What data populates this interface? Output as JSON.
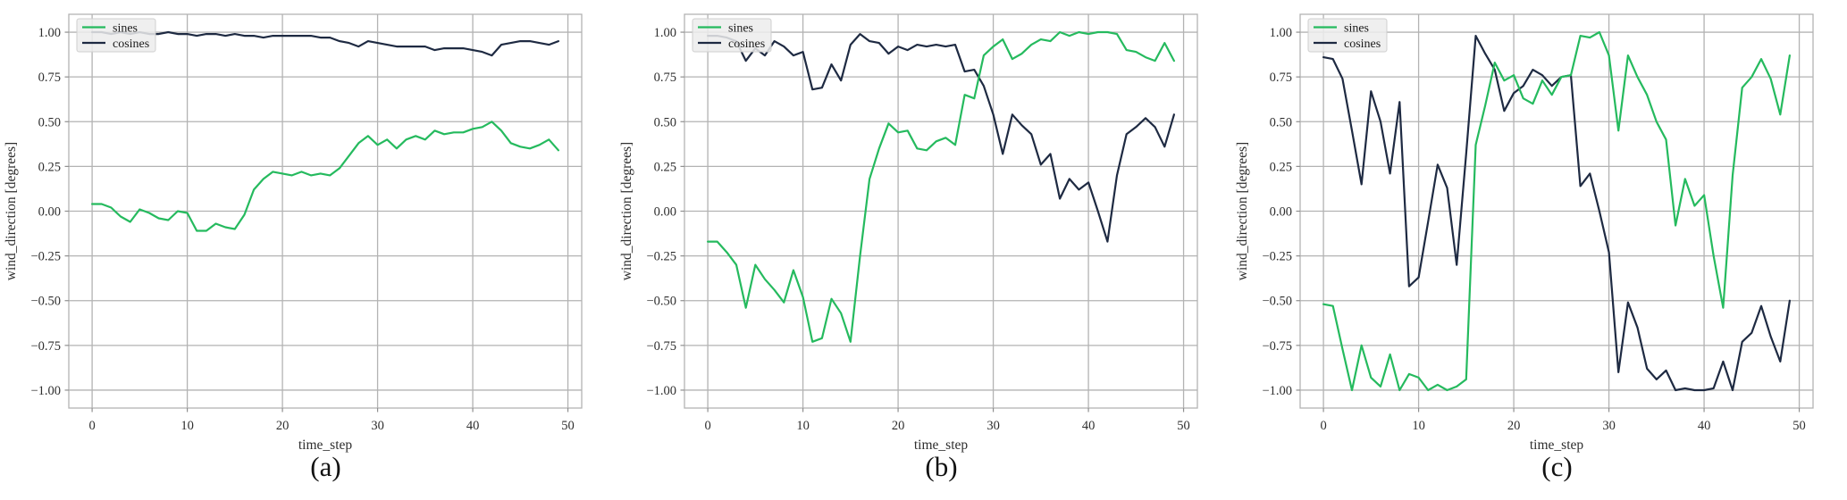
{
  "page": {
    "background": "#ffffff"
  },
  "styles": {
    "grid_color": "#b3b3b3",
    "frame_color": "#b3b3b3",
    "tick_mark_color": "#8f8f8f",
    "text_color": "#2e2e2e",
    "caption_color": "#111111",
    "legend_bg": "#ececec",
    "legend_border": "#cfcfcf",
    "sines_color": "#25ba5e",
    "cosines_color": "#1e2a42"
  },
  "chart_data": [
    {
      "type": "line",
      "caption": "(a)",
      "title": "",
      "xlabel": "time_step",
      "ylabel": "wind_direction [degrees]",
      "legend": {
        "position": "upper left",
        "entries": [
          "sines",
          "cosines"
        ]
      },
      "x_start": 0,
      "x_step": 1,
      "n_points": 50,
      "xlim": [
        -2.45,
        51.45
      ],
      "ylim": [
        -1.1,
        1.1
      ],
      "x_ticks": [
        0,
        10,
        20,
        30,
        40,
        50
      ],
      "y_ticks": [
        1.0,
        0.75,
        0.5,
        0.25,
        0.0,
        -0.25,
        -0.5,
        -0.75,
        -1.0
      ],
      "y_tick_labels": [
        "1.00",
        "0.75",
        "0.50",
        "0.25",
        "0.00",
        "−0.25",
        "−0.50",
        "−0.75",
        "−1.00"
      ],
      "grid": true,
      "series": [
        {
          "name": "sines",
          "color": "#25ba5e",
          "values": [
            0.04,
            0.04,
            0.02,
            -0.03,
            -0.06,
            0.01,
            -0.01,
            -0.04,
            -0.05,
            0.0,
            -0.01,
            -0.11,
            -0.11,
            -0.07,
            -0.09,
            -0.1,
            -0.02,
            0.12,
            0.18,
            0.22,
            0.21,
            0.2,
            0.22,
            0.2,
            0.21,
            0.2,
            0.24,
            0.31,
            0.38,
            0.42,
            0.37,
            0.4,
            0.35,
            0.4,
            0.42,
            0.4,
            0.45,
            0.43,
            0.44,
            0.44,
            0.46,
            0.47,
            0.5,
            0.45,
            0.38,
            0.36,
            0.35,
            0.37,
            0.4,
            0.34
          ]
        },
        {
          "name": "cosines",
          "color": "#1e2a42",
          "values": [
            1.0,
            1.0,
            0.99,
            1.0,
            0.99,
            1.0,
            0.99,
            0.99,
            1.0,
            0.99,
            0.99,
            0.98,
            0.99,
            0.99,
            0.98,
            0.99,
            0.98,
            0.98,
            0.97,
            0.98,
            0.98,
            0.98,
            0.98,
            0.98,
            0.97,
            0.97,
            0.95,
            0.94,
            0.92,
            0.95,
            0.94,
            0.93,
            0.92,
            0.92,
            0.92,
            0.92,
            0.9,
            0.91,
            0.91,
            0.91,
            0.9,
            0.89,
            0.87,
            0.93,
            0.94,
            0.95,
            0.95,
            0.94,
            0.93,
            0.95
          ]
        }
      ]
    },
    {
      "type": "line",
      "caption": "(b)",
      "title": "",
      "xlabel": "time_step",
      "ylabel": "wind_direction [degrees]",
      "legend": {
        "position": "upper left",
        "entries": [
          "sines",
          "cosines"
        ]
      },
      "x_start": 0,
      "x_step": 1,
      "n_points": 50,
      "xlim": [
        -2.45,
        51.45
      ],
      "ylim": [
        -1.1,
        1.1
      ],
      "x_ticks": [
        0,
        10,
        20,
        30,
        40,
        50
      ],
      "y_ticks": [
        1.0,
        0.75,
        0.5,
        0.25,
        0.0,
        -0.25,
        -0.5,
        -0.75,
        -1.0
      ],
      "y_tick_labels": [
        "1.00",
        "0.75",
        "0.50",
        "0.25",
        "0.00",
        "−0.25",
        "−0.50",
        "−0.75",
        "−1.00"
      ],
      "grid": true,
      "series": [
        {
          "name": "sines",
          "color": "#25ba5e",
          "values": [
            -0.17,
            -0.17,
            -0.23,
            -0.3,
            -0.54,
            -0.3,
            -0.38,
            -0.44,
            -0.51,
            -0.33,
            -0.48,
            -0.73,
            -0.71,
            -0.49,
            -0.57,
            -0.73,
            -0.25,
            0.18,
            0.35,
            0.49,
            0.44,
            0.45,
            0.35,
            0.34,
            0.39,
            0.41,
            0.37,
            0.65,
            0.63,
            0.87,
            0.92,
            0.96,
            0.85,
            0.88,
            0.93,
            0.96,
            0.95,
            1.0,
            0.98,
            1.0,
            0.99,
            1.0,
            1.0,
            0.99,
            0.9,
            0.89,
            0.86,
            0.84,
            0.94,
            0.84
          ]
        },
        {
          "name": "cosines",
          "color": "#1e2a42",
          "values": [
            0.98,
            0.98,
            0.97,
            0.95,
            0.84,
            0.91,
            0.87,
            0.95,
            0.92,
            0.87,
            0.89,
            0.68,
            0.69,
            0.82,
            0.73,
            0.93,
            0.99,
            0.95,
            0.94,
            0.88,
            0.92,
            0.9,
            0.93,
            0.92,
            0.93,
            0.92,
            0.93,
            0.78,
            0.79,
            0.7,
            0.54,
            0.32,
            0.54,
            0.48,
            0.43,
            0.26,
            0.32,
            0.07,
            0.18,
            0.12,
            0.16,
            0.0,
            -0.17,
            0.2,
            0.43,
            0.47,
            0.52,
            0.47,
            0.36,
            0.54
          ]
        }
      ]
    },
    {
      "type": "line",
      "caption": "(c)",
      "title": "",
      "xlabel": "time_step",
      "ylabel": "wind_direction [degrees]",
      "legend": {
        "position": "upper left",
        "entries": [
          "sines",
          "cosines"
        ]
      },
      "x_start": 0,
      "x_step": 1,
      "n_points": 50,
      "xlim": [
        -2.45,
        51.45
      ],
      "ylim": [
        -1.1,
        1.1
      ],
      "x_ticks": [
        0,
        10,
        20,
        30,
        40,
        50
      ],
      "y_ticks": [
        1.0,
        0.75,
        0.5,
        0.25,
        0.0,
        -0.25,
        -0.5,
        -0.75,
        -1.0
      ],
      "y_tick_labels": [
        "1.00",
        "0.75",
        "0.50",
        "0.25",
        "0.00",
        "−0.25",
        "−0.50",
        "−0.75",
        "−1.00"
      ],
      "grid": true,
      "series": [
        {
          "name": "sines",
          "color": "#25ba5e",
          "values": [
            -0.52,
            -0.53,
            -0.77,
            -1.0,
            -0.75,
            -0.93,
            -0.98,
            -0.8,
            -1.0,
            -0.91,
            -0.93,
            -1.0,
            -0.97,
            -1.0,
            -0.98,
            -0.94,
            0.37,
            0.59,
            0.83,
            0.73,
            0.76,
            0.63,
            0.6,
            0.73,
            0.65,
            0.75,
            0.76,
            0.98,
            0.97,
            1.0,
            0.87,
            0.45,
            0.87,
            0.75,
            0.65,
            0.5,
            0.4,
            -0.08,
            0.18,
            0.03,
            0.09,
            -0.25,
            -0.54,
            0.2,
            0.69,
            0.75,
            0.85,
            0.74,
            0.54,
            0.87
          ]
        },
        {
          "name": "cosines",
          "color": "#1e2a42",
          "values": [
            0.86,
            0.85,
            0.74,
            0.45,
            0.15,
            0.67,
            0.5,
            0.21,
            0.61,
            -0.42,
            -0.37,
            -0.06,
            0.26,
            0.13,
            -0.3,
            0.32,
            0.98,
            0.88,
            0.79,
            0.56,
            0.66,
            0.7,
            0.79,
            0.76,
            0.7,
            0.75,
            0.76,
            0.14,
            0.21,
            0.0,
            -0.23,
            -0.9,
            -0.51,
            -0.65,
            -0.88,
            -0.94,
            -0.89,
            -1.0,
            -0.99,
            -1.0,
            -1.0,
            -0.99,
            -0.84,
            -1.0,
            -0.73,
            -0.68,
            -0.53,
            -0.7,
            -0.84,
            -0.5
          ]
        }
      ]
    }
  ]
}
